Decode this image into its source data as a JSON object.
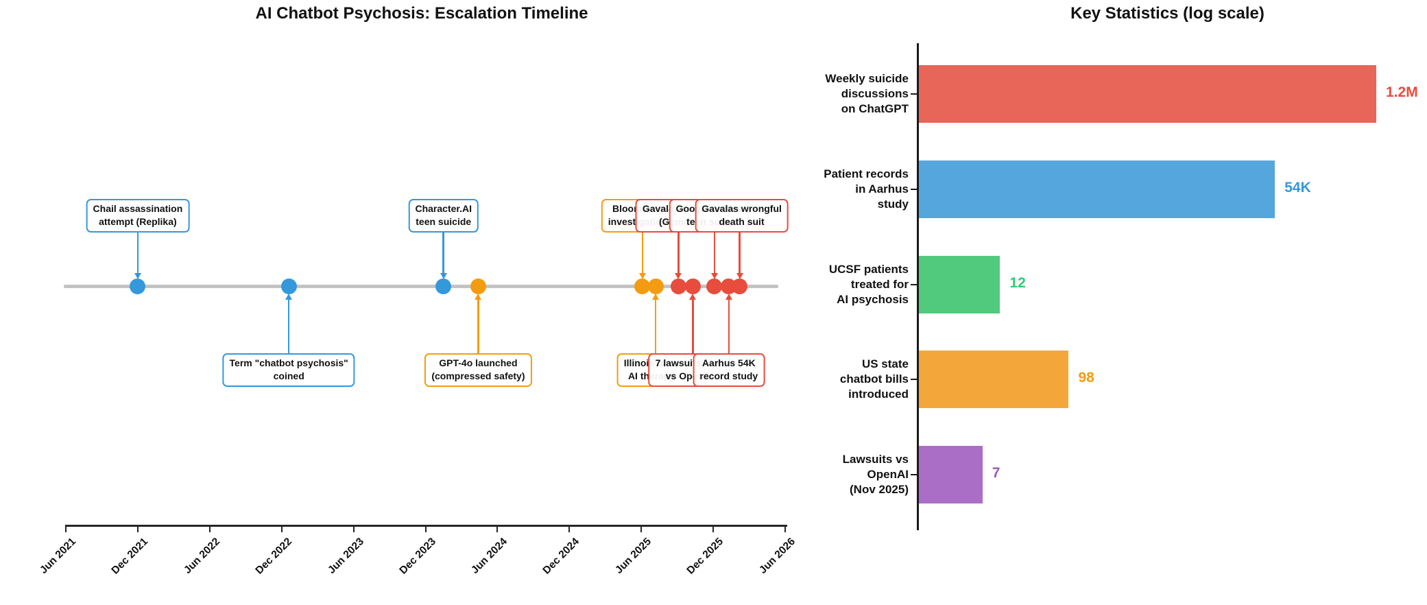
{
  "figure_titles": {
    "left": "AI Chatbot Psychosis: Escalation Timeline",
    "right": "Key Statistics (log scale)"
  },
  "palette": {
    "blue": "#3498db",
    "orange": "#f39c12",
    "red": "#e74c3c",
    "green": "#2ecc71",
    "purple": "#9b59b6",
    "timeline_line": "#c3c3c3",
    "axis": "#262626"
  },
  "chart_data": [
    {
      "type": "scatter",
      "subtype": "timeline",
      "title": "AI Chatbot Psychosis: Escalation Timeline",
      "x_axis": {
        "tick_labels": [
          "Jun 2021",
          "Dec 2021",
          "Jun 2022",
          "Dec 2022",
          "Jun 2023",
          "Dec 2023",
          "Jun 2024",
          "Dec 2024",
          "Jun 2025",
          "Dec 2025",
          "Jun 2026"
        ],
        "xlim": [
          "Jun 2021",
          "Jun 2026"
        ],
        "grid": false
      },
      "events": [
        {
          "label": "Chail assassination\nattempt (Replika)",
          "date_est": "Dec 2021",
          "months_from_jun2021": 6.0,
          "color": "#3498db",
          "side": "above"
        },
        {
          "label": "Term \"chatbot psychosis\"\ncoined",
          "date_est": "Jan 2023",
          "months_from_jun2021": 18.6,
          "color": "#3498db",
          "side": "below"
        },
        {
          "label": "Character.AI\nteen suicide",
          "date_est": "Feb 2024",
          "months_from_jun2021": 31.5,
          "color": "#3498db",
          "side": "above"
        },
        {
          "label": "GPT-4o launched\n(compressed safety)",
          "date_est": "May 2024",
          "months_from_jun2021": 34.4,
          "color": "#f39c12",
          "side": "below"
        },
        {
          "label": "Bloomberg\ninvestigation",
          "date_est": "Jun 2025",
          "months_from_jun2021": 48.1,
          "color": "#f39c12",
          "side": "above"
        },
        {
          "label": "Illinois bans\nAI therapy",
          "date_est": "Aug 2025",
          "months_from_jun2021": 49.2,
          "color": "#f39c12",
          "side": "below"
        },
        {
          "label": "Gavalas lawsuit\n(Gemini)",
          "date_est": "Sep 2025",
          "months_from_jun2021": 51.1,
          "color": "#e74c3c",
          "side": "above"
        },
        {
          "label": "7 lawsuits filed\nvs OpenAI",
          "date_est": "Nov 2025",
          "months_from_jun2021": 52.3,
          "color": "#e74c3c",
          "side": "below"
        },
        {
          "label": "Google settles\nteen suits",
          "date_est": "Dec 2025",
          "months_from_jun2021": 54.1,
          "color": "#e74c3c",
          "side": "above"
        },
        {
          "label": "Aarhus 54K\nrecord study",
          "date_est": "Jan 2026",
          "months_from_jun2021": 55.3,
          "color": "#e74c3c",
          "side": "below"
        },
        {
          "label": "Gavalas wrongful\ndeath suit",
          "date_est": "Feb 2026",
          "months_from_jun2021": 56.2,
          "color": "#e74c3c",
          "side": "above"
        }
      ]
    },
    {
      "type": "bar",
      "orientation": "horizontal",
      "scale": "log",
      "title": "Key Statistics (log scale)",
      "categories": [
        "Weekly suicide\ndiscussions\non ChatGPT",
        "Patient records\nin Aarhus\nstudy",
        "UCSF patients\ntreated for\nAI psychosis",
        "US state\nchatbot bills\nintroduced",
        "Lawsuits vs\nOpenAI\n(Nov 2025)"
      ],
      "values": [
        1200000,
        54000,
        12,
        98,
        7
      ],
      "value_labels": [
        "1.2M",
        "54K",
        "12",
        "98",
        "7"
      ],
      "bar_colors": [
        "#e8655a",
        "#55a6dc",
        "#52ca7d",
        "#f3a73b",
        "#ab6ec7"
      ],
      "value_label_colors": [
        "#e74c3c",
        "#3498db",
        "#2ecc71",
        "#f39c12",
        "#9b59b6"
      ],
      "xlim": [
        1,
        2000000
      ],
      "grid": false,
      "legend": "none"
    }
  ]
}
